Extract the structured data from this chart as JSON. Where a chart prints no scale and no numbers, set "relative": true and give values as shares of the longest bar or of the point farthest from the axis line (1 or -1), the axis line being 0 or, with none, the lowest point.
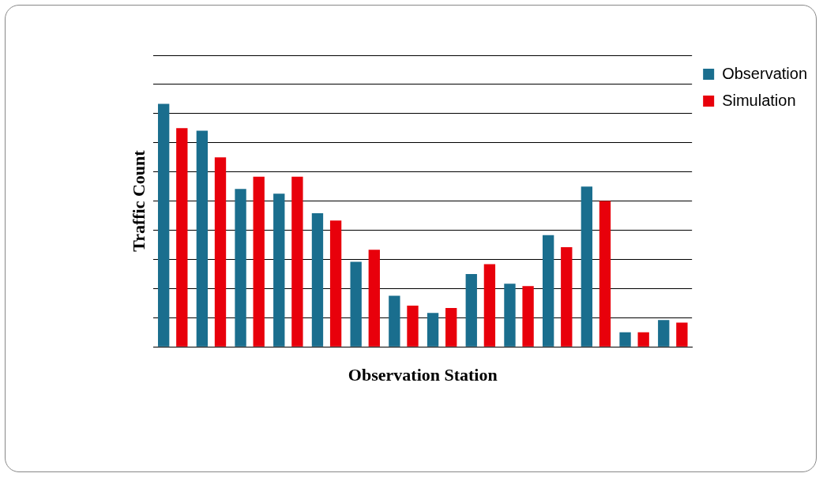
{
  "chart_data": {
    "type": "bar",
    "relative": true,
    "xlabel": "Observation Station",
    "ylabel": "Traffic Count",
    "categories": [
      null,
      null,
      null,
      null,
      null,
      null,
      null,
      null,
      null,
      null,
      null,
      null,
      null,
      null
    ],
    "series": [
      {
        "name": "Observation",
        "color": "#1a6e8e",
        "values": [
          1,
          0.89,
          0.65,
          0.63,
          0.55,
          0.35,
          0.21,
          0.14,
          0.3,
          0.26,
          0.46,
          0.66,
          0.06,
          0.11
        ]
      },
      {
        "name": "Simulation",
        "color": "#e8000b",
        "values": [
          0.9,
          0.78,
          0.7,
          0.7,
          0.52,
          0.4,
          0.17,
          0.16,
          0.34,
          0.25,
          0.41,
          0.6,
          0.06,
          0.1
        ]
      }
    ],
    "grid": "y",
    "legend": "top right"
  }
}
